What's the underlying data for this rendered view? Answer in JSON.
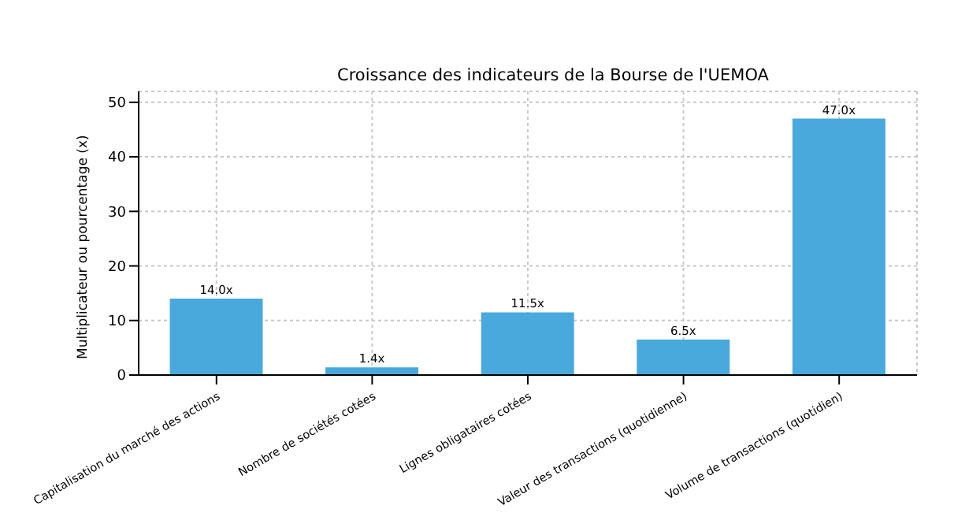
{
  "chart_data": {
    "type": "bar",
    "title": "Croissance des indicateurs de la Bourse de l'UEMOA",
    "ylabel": "Multiplicateur ou pourcentage (x)",
    "categories": [
      "Capitalisation du marché des actions",
      "Nombre de sociétés cotées",
      "Lignes obligataires cotées",
      "Valeur des transactions (quotidienne)",
      "Volume de transactions (quotidien)"
    ],
    "values": [
      14.0,
      1.4,
      11.5,
      6.5,
      47.0
    ],
    "value_labels": [
      "14.0x",
      "1.4x",
      "11.5x",
      "6.5x",
      "47.0x"
    ],
    "color": "#4aa9dc",
    "ylim": [
      0,
      52
    ],
    "yticks": [
      0,
      10,
      20,
      30,
      40,
      50
    ],
    "grid": true
  }
}
